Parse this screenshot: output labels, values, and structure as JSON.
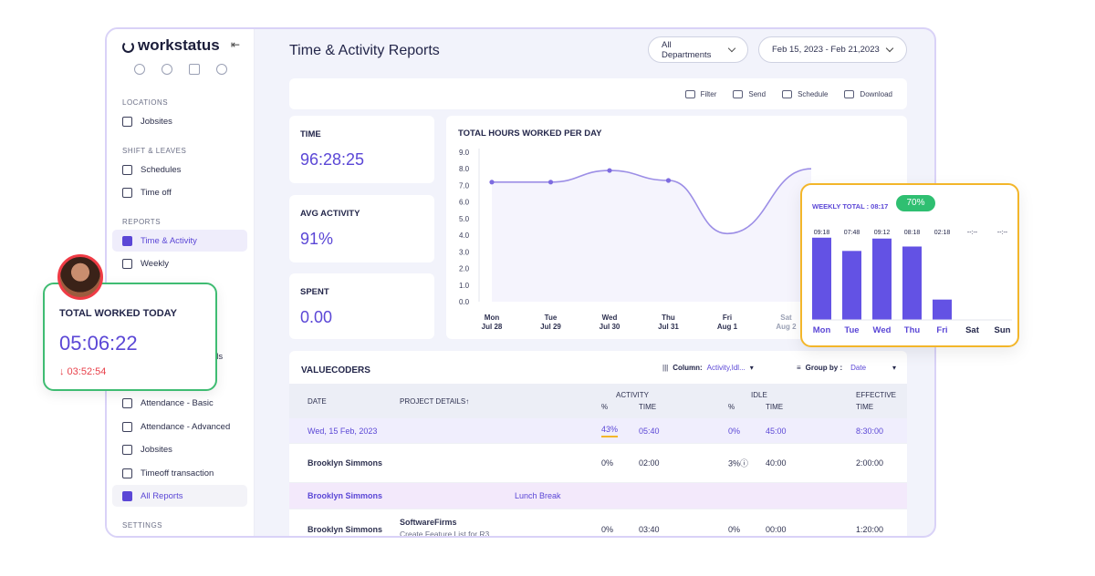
{
  "app": {
    "logo": "workstatus",
    "page_title": "Time & Activity Reports"
  },
  "filters": {
    "department": "All Departments",
    "date_range": "Feb 15, 2023 - Feb 21,2023"
  },
  "toolbar": {
    "filter": "Filter",
    "send": "Send",
    "schedule": "Schedule",
    "download": "Download"
  },
  "sidebar": {
    "sections": {
      "locations": "LOCATIONS",
      "shift": "SHIFT & LEAVES",
      "reports": "REPORTS",
      "settings": "SETTINGS"
    },
    "items": {
      "jobsites": "Jobsites",
      "schedules": "Schedules",
      "timeoff": "Time off",
      "time_activity": "Time & Activity",
      "weekly": "Weekly",
      "partial": "als",
      "att_basic": "Attendance - Basic",
      "att_adv": "Attendance - Advanced",
      "jobsites2": "Jobsites",
      "timeoff_tx": "Timeoff transaction",
      "all_reports": "All Reports"
    }
  },
  "stats": {
    "time": {
      "label": "TIME",
      "value": "96:28:25"
    },
    "activity": {
      "label": "AVG ACTIVITY",
      "value": "91%"
    },
    "spent": {
      "label": "SPENT",
      "value": "0.00"
    }
  },
  "chart_data": [
    {
      "type": "line",
      "title": "TOTAL HOURS WORKED PER DAY",
      "categories": [
        "Mon Jul 28",
        "Tue Jul 29",
        "Wed Jul 30",
        "Thu Jul 31",
        "Fri Aug 1",
        "Sat Aug 2"
      ],
      "day_labels": [
        [
          "Mon",
          "Jul 28"
        ],
        [
          "Tue",
          "Jul 29"
        ],
        [
          "Wed",
          "Jul 30"
        ],
        [
          "Thu",
          "Jul 31"
        ],
        [
          "Fri",
          "Aug 1"
        ],
        [
          "Sat",
          "Aug 2"
        ]
      ],
      "yticks": [
        "9.0",
        "8.0",
        "7.0",
        "6.0",
        "5.0",
        "4.0",
        "3.0",
        "2.0",
        "1.0",
        "0.0"
      ],
      "ylim": [
        0,
        9
      ],
      "x": [
        0,
        1,
        2,
        3,
        4,
        5
      ],
      "values": [
        7.2,
        7.2,
        7.9,
        7.3,
        4.1,
        8.0
      ]
    },
    {
      "type": "bar",
      "title": "WEEKLY TOTAL : 08:17",
      "badge": "70%",
      "categories": [
        "Mon",
        "Tue",
        "Wed",
        "Thu",
        "Fri",
        "Sat",
        "Sun"
      ],
      "value_labels": [
        "09:18",
        "07:48",
        "09:12",
        "08:18",
        "02:18",
        "--:--",
        "--:--"
      ],
      "values": [
        9.3,
        7.8,
        9.2,
        8.3,
        2.3,
        0,
        0
      ],
      "ylim": [
        0,
        10
      ]
    }
  ],
  "table": {
    "title": "VALUECODERS",
    "column_label": "Column:",
    "column_value": "Activity,Idl...",
    "group_label": "Group by :",
    "group_value": "Date",
    "headers": {
      "date": "DATE",
      "project": "PROJECT DETAILS↑",
      "activity": "ACTIVITY",
      "idle": "IDLE",
      "effective": "EFFECTIVE",
      "effective2": "TIME",
      "pct": "%",
      "time": "TIME"
    },
    "rows": [
      {
        "date": "Wed, 15 Feb, 2023",
        "a_pct": "43%",
        "a_time": "05:40",
        "i_pct": "0%",
        "i_time": "45:00",
        "eff": "8:30:00"
      },
      {
        "name": "Brooklyn Simmons",
        "a_pct": "0%",
        "a_time": "02:00",
        "i_pct": "3%ⓘ",
        "i_time": "40:00",
        "eff": "2:00:00"
      },
      {
        "name": "Brooklyn Simmons",
        "note": "Lunch Break"
      },
      {
        "name": "Brooklyn Simmons",
        "project": "SoftwareFirms",
        "task": "Create Feature List for R3",
        "a_pct": "0%",
        "a_time": "03:40",
        "i_pct": "0%",
        "i_time": "00:00",
        "eff": "1:20:00"
      }
    ]
  },
  "today": {
    "label": "TOTAL WORKED TODAY",
    "time": "05:06:22",
    "idle": "↓ 03:52:54"
  },
  "colors": {
    "accent": "#5b47d6",
    "green": "#3fbc72",
    "gold": "#f3b62a",
    "red": "#e8424b"
  }
}
